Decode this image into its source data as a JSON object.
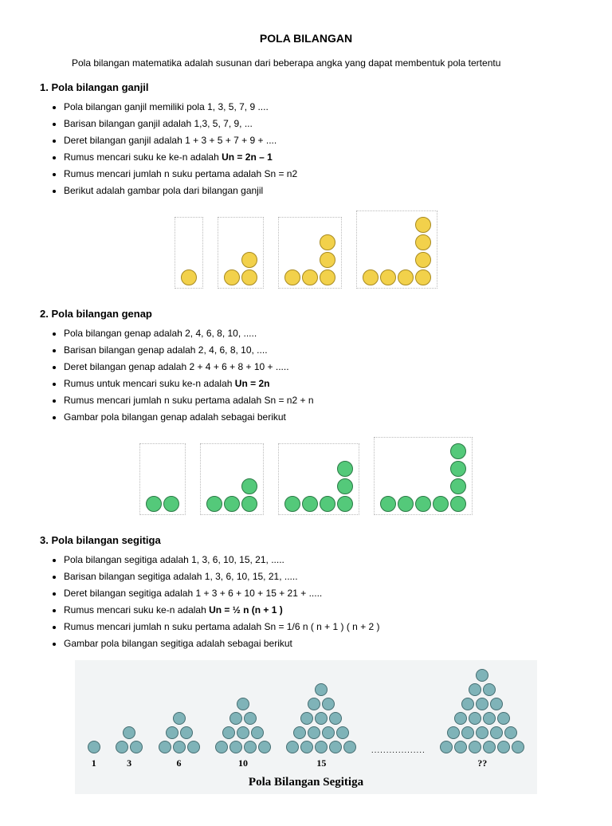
{
  "title": "POLA BILANGAN",
  "intro": "Pola bilangan matematika adalah susunan dari beberapa angka yang dapat membentuk pola tertentu",
  "sections": [
    {
      "heading": "1. Pola bilangan ganjil",
      "items": [
        {
          "text": "Pola bilangan ganjil memiliki pola 1, 3, 5, 7, 9 ...."
        },
        {
          "text": "Barisan bilangan ganjil adalah 1,3, 5, 7, 9, ..."
        },
        {
          "text": "Deret bilangan ganjil adalah 1 + 3 + 5 + 7 + 9 + ...."
        },
        {
          "text": "Rumus mencari suku ke ke-n adalah ",
          "bold": "Un = 2n – 1"
        },
        {
          "text": "Rumus mencari jumlah n suku pertama adalah Sn = n2"
        },
        {
          "text": "Berikut adalah gambar pola dari bilangan ganjil"
        }
      ],
      "pattern": {
        "color": "yellow",
        "groups": [
          [
            [
              1
            ]
          ],
          [
            [
              2
            ],
            [
              1
            ]
          ],
          [
            [
              3
            ],
            [
              1
            ],
            [
              1
            ]
          ],
          [
            [
              4
            ],
            [
              1
            ],
            [
              1
            ],
            [
              1
            ]
          ]
        ]
      }
    },
    {
      "heading": "2. Pola bilangan genap",
      "items": [
        {
          "text": "Pola bilangan genap adalah 2, 4, 6, 8, 10, ....."
        },
        {
          "text": "Barisan bilangan genap adalah 2, 4, 6, 8, 10, ...."
        },
        {
          "text": "Deret bilangan genap adalah 2 + 4 + 6 + 8 + 10 + ....."
        },
        {
          "text": "Rumus untuk mencari suku ke-n adalah ",
          "bold": "Un = 2n"
        },
        {
          "text": "Rumus mencari jumlah n suku pertama adalah Sn = n2 + n"
        },
        {
          "text": "Gambar pola bilangan genap adalah sebagai berikut"
        }
      ],
      "pattern": {
        "color": "green",
        "groups": [
          [
            [
              2
            ]
          ],
          [
            [
              3
            ],
            [
              1
            ]
          ],
          [
            [
              4
            ],
            [
              1
            ],
            [
              1
            ]
          ],
          [
            [
              5
            ],
            [
              1
            ],
            [
              1
            ],
            [
              1
            ]
          ]
        ]
      }
    },
    {
      "heading": "3. Pola bilangan segitiga",
      "items": [
        {
          "text": "Pola bilangan segitiga adalah 1, 3, 6, 10, 15, 21, ....."
        },
        {
          "text": "Barisan bilangan segitiga adalah 1, 3, 6, 10, 15, 21, ....."
        },
        {
          "text": "Deret bilangan segitiga adalah 1 + 3 + 6 + 10 + 15 + 21 + ....."
        },
        {
          "text": "Rumus mencari suku ke-n adalah ",
          "bold": "Un = ½ n (n + 1 )"
        },
        {
          "text": "Rumus mencari jumlah n suku pertama adalah Sn = 1/6 n ( n + 1 ) ( n + 2 )"
        },
        {
          "text": "Gambar pola bilangan segitiga adalah sebagai berikut"
        }
      ],
      "triangle": {
        "caption": "Pola Bilangan Segitiga",
        "groups": [
          {
            "rows": 1,
            "label": "1"
          },
          {
            "rows": 2,
            "label": "3"
          },
          {
            "rows": 3,
            "label": "6"
          },
          {
            "rows": 4,
            "label": "10"
          },
          {
            "rows": 5,
            "label": "15"
          },
          {
            "rows": 6,
            "label": "??",
            "ellipsisBefore": true
          }
        ]
      }
    }
  ]
}
